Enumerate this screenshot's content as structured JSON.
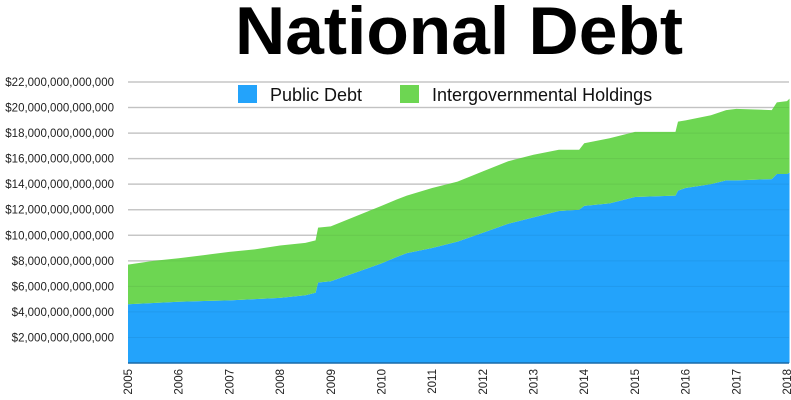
{
  "chart_data": {
    "type": "area",
    "stacked": true,
    "title": "National Debt",
    "xlabel": "",
    "ylabel": "",
    "xlim": [
      2005,
      2018.05
    ],
    "ylim": [
      0,
      22000000000000
    ],
    "grid": true,
    "legend_placement": "top-center",
    "x_ticks": [
      "2005",
      "2006",
      "2007",
      "2008",
      "2009",
      "2010",
      "2011",
      "2012",
      "2013",
      "2014",
      "2015",
      "2016",
      "2017",
      "2018"
    ],
    "y_ticks": [
      "$2,000,000,000,000",
      "$4,000,000,000,000",
      "$6,000,000,000,000",
      "$8,000,000,000,000",
      "$10,000,000,000,000",
      "$12,000,000,000,000",
      "$14,000,000,000,000",
      "$16,000,000,000,000",
      "$18,000,000,000,000",
      "$20,000,000,000,000",
      "$22,000,000,000,000"
    ],
    "x": [
      2005,
      2005.5,
      2006,
      2006.5,
      2007,
      2007.5,
      2008,
      2008.5,
      2008.7,
      2008.75,
      2009,
      2009.5,
      2010,
      2010.3,
      2010.5,
      2011,
      2011.5,
      2012,
      2012.5,
      2013,
      2013.5,
      2013.9,
      2014,
      2014.5,
      2015,
      2015.8,
      2015.85,
      2016,
      2016.5,
      2016.8,
      2017,
      2017.7,
      2017.8,
      2018,
      2018.05
    ],
    "series": [
      {
        "name": "Public Debt",
        "color": "#23A3FB",
        "values": [
          4.6,
          4.7,
          4.8,
          4.85,
          4.9,
          5.0,
          5.1,
          5.3,
          5.5,
          6.3,
          6.4,
          7.1,
          7.8,
          8.3,
          8.6,
          9.0,
          9.5,
          10.2,
          10.9,
          11.4,
          11.9,
          12.0,
          12.3,
          12.5,
          13.0,
          13.1,
          13.5,
          13.7,
          14.0,
          14.3,
          14.3,
          14.4,
          14.8,
          14.8,
          14.9
        ]
      },
      {
        "name": "Intergovernmental Holdings",
        "color": "#6DD652",
        "values": [
          3.1,
          3.3,
          3.4,
          3.6,
          3.8,
          3.9,
          4.1,
          4.1,
          4.1,
          4.3,
          4.3,
          4.4,
          4.5,
          4.5,
          4.5,
          4.7,
          4.7,
          4.8,
          4.9,
          4.9,
          4.8,
          4.7,
          4.9,
          5.1,
          5.1,
          5.0,
          5.4,
          5.3,
          5.4,
          5.5,
          5.6,
          5.4,
          5.6,
          5.7,
          5.8
        ]
      }
    ],
    "value_unit_multiplier": 1000000000000
  }
}
